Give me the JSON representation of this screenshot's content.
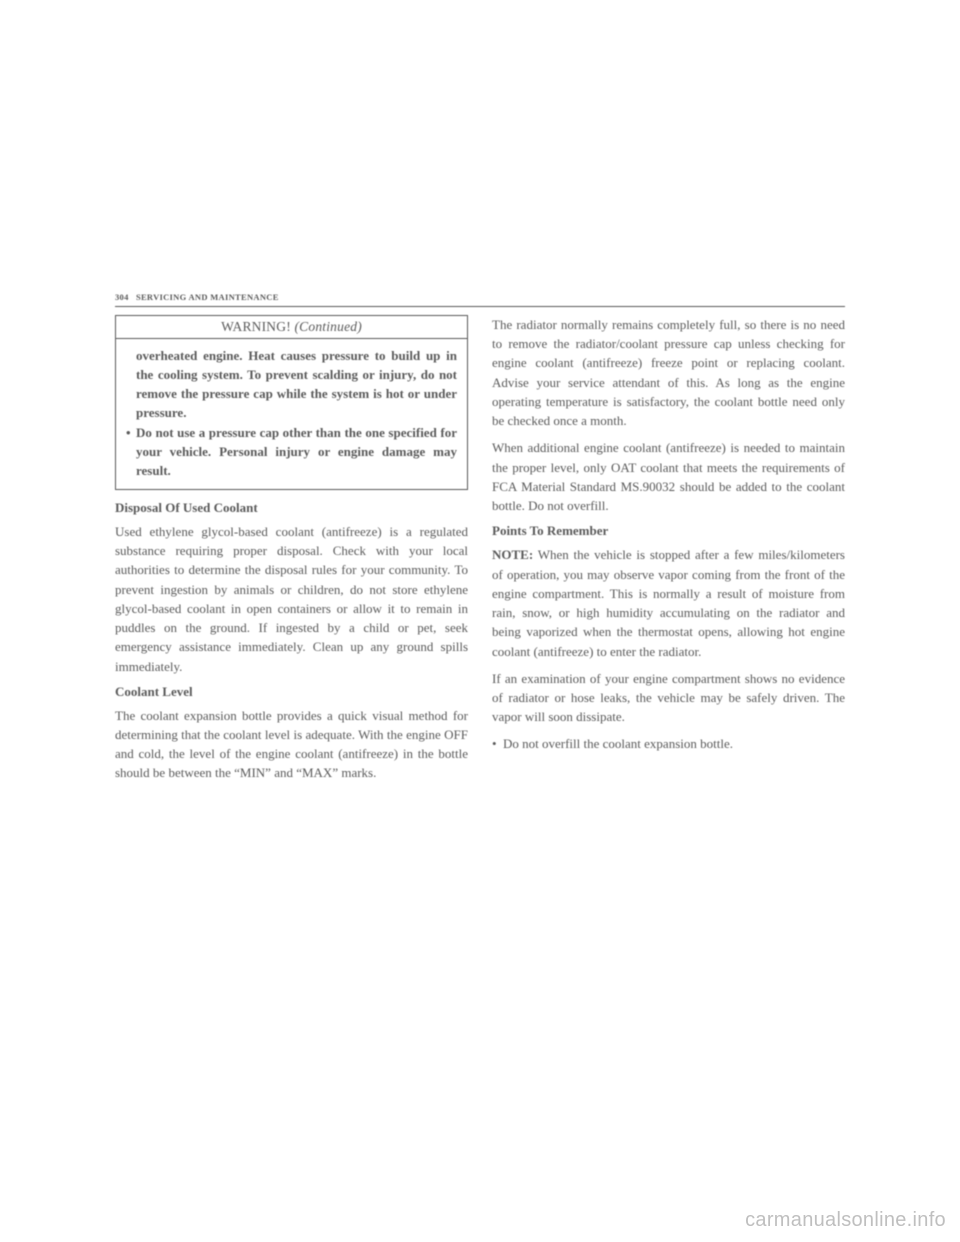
{
  "header": {
    "page_number": "304",
    "section": "SERVICING AND MAINTENANCE"
  },
  "warning": {
    "title": "WARNING!",
    "continued": "(Continued)",
    "item1": "overheated engine. Heat causes pressure to build up in the cooling system. To prevent scalding or injury, do not remove the pressure cap while the system is hot or under pressure.",
    "item2": "Do not use a pressure cap other than the one specified for your vehicle. Personal injury or engine damage may result."
  },
  "left": {
    "h1": "Disposal Of Used Coolant",
    "p1": "Used ethylene glycol-based coolant (antifreeze) is a regulated substance requiring proper disposal. Check with your local authorities to determine the disposal rules for your community. To prevent ingestion by animals or children, do not store ethylene glycol-based coolant in open containers or allow it to remain in puddles on the ground. If ingested by a child or pet, seek emergency assistance immediately. Clean up any ground spills immediately.",
    "h2": "Coolant Level",
    "p2": "The coolant expansion bottle provides a quick visual method for determining that the coolant level is adequate. With the engine OFF and cold, the level of the engine coolant (antifreeze) in the bottle should be between the “MIN” and “MAX” marks."
  },
  "right": {
    "p1": "The radiator normally remains completely full, so there is no need to remove the radiator/coolant pressure cap unless checking for engine coolant (antifreeze) freeze point or replacing coolant. Advise your service attendant of this. As long as the engine operating temperature is satisfactory, the coolant bottle need only be checked once a month.",
    "p2": "When additional engine coolant (antifreeze) is needed to maintain the proper level, only OAT coolant that meets the requirements of FCA Material Standard MS.90032 should be added to the coolant bottle. Do not overfill.",
    "h1": "Points To Remember",
    "note_label": "NOTE:",
    "note_body": " When the vehicle is stopped after a few miles/kilometers of operation, you may observe vapor coming from the front of the engine compartment. This is normally a result of moisture from rain, snow, or high humidity accumulating on the radiator and being vaporized when the thermostat opens, allowing hot engine coolant (antifreeze) to enter the radiator.",
    "p3": "If an examination of your engine compartment shows no evidence of radiator or hose leaks, the vehicle may be safely driven. The vapor will soon dissipate.",
    "bullet1": "Do not overfill the coolant expansion bottle."
  },
  "watermark": "carmanualsonline.info"
}
